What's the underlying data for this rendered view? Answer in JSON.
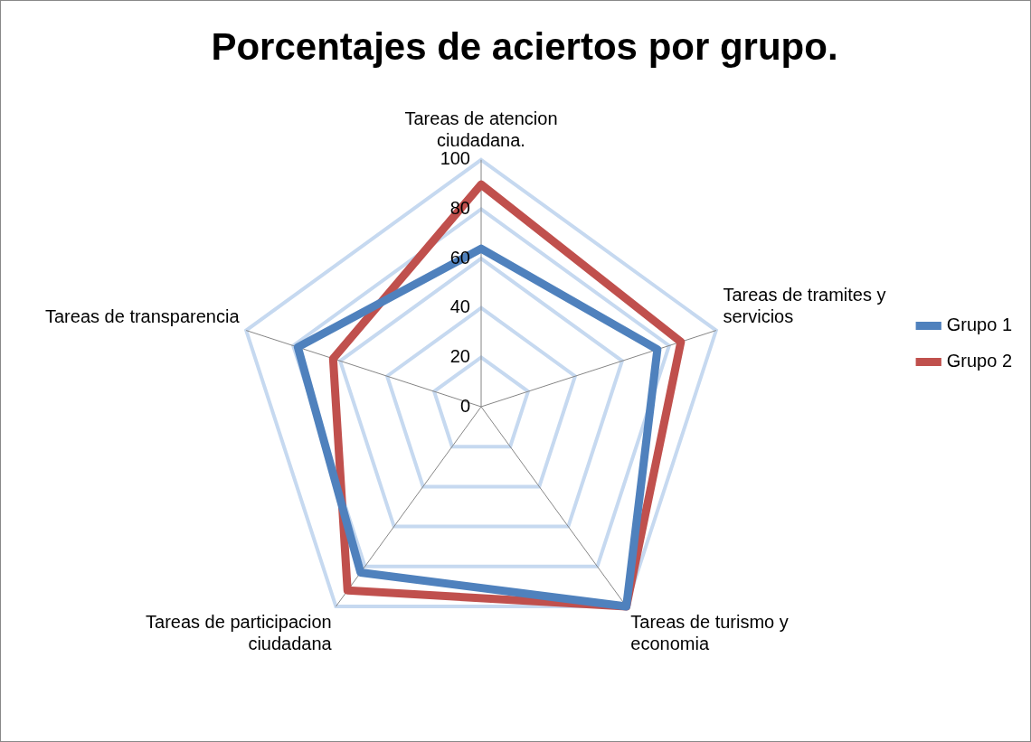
{
  "chart_data": {
    "type": "radar",
    "title": "Porcentajes de aciertos por grupo.",
    "categories": [
      "Tareas de atencion ciudadana.",
      "Tareas de tramites y servicios",
      "Tareas de turismo y economia",
      "Tareas de participacion ciudadana",
      "Tareas de transparencia"
    ],
    "series": [
      {
        "name": "Grupo 1",
        "color": "#4f81bd",
        "values": [
          64,
          75,
          100,
          83,
          78
        ]
      },
      {
        "name": "Grupo 2",
        "color": "#c0504d",
        "values": [
          90,
          85,
          100,
          92,
          63
        ]
      }
    ],
    "ylim": [
      0,
      100
    ],
    "yticks": [
      0,
      20,
      40,
      60,
      80,
      100
    ],
    "grid": true,
    "legend": "right",
    "marker": "none",
    "line_style": "solid"
  }
}
